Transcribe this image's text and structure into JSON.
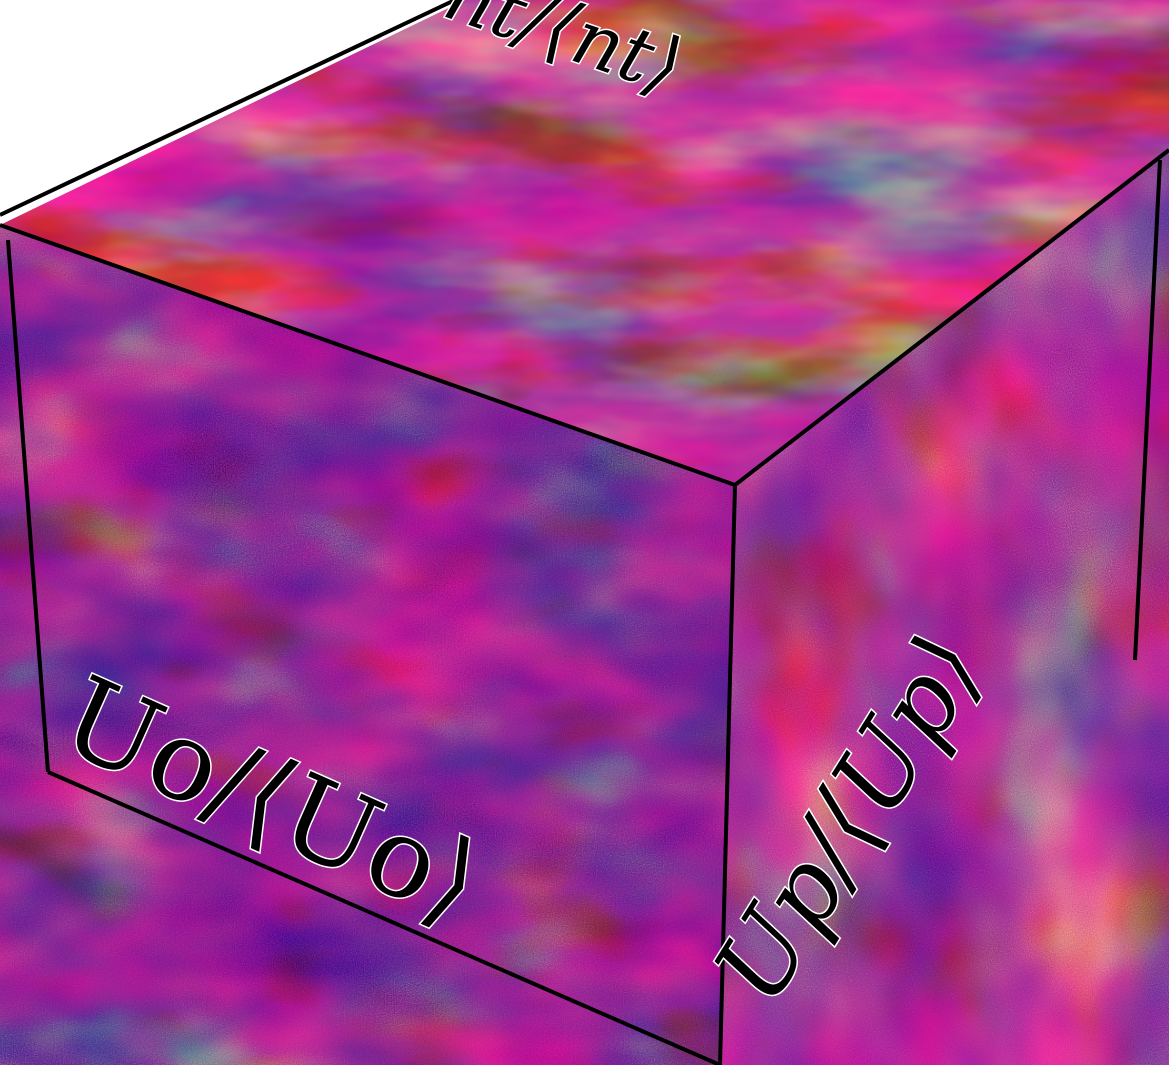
{
  "figure": {
    "colormap": "plasma",
    "colors": {
      "dark": "#2a0a62",
      "mid": "#9b2fa3",
      "bright": "#f89a2a",
      "hot": "#fde34a",
      "edge": "#000000"
    },
    "faces": {
      "top": {
        "label": "nt/⟨nt⟩",
        "texture": "swirling turbulent filaments"
      },
      "front": {
        "label": "Uo/⟨Uo⟩",
        "texture": "noisy turbulent field"
      },
      "side": {
        "label": "Up/⟨Up⟩",
        "texture": "noisy turbulent field"
      }
    }
  }
}
